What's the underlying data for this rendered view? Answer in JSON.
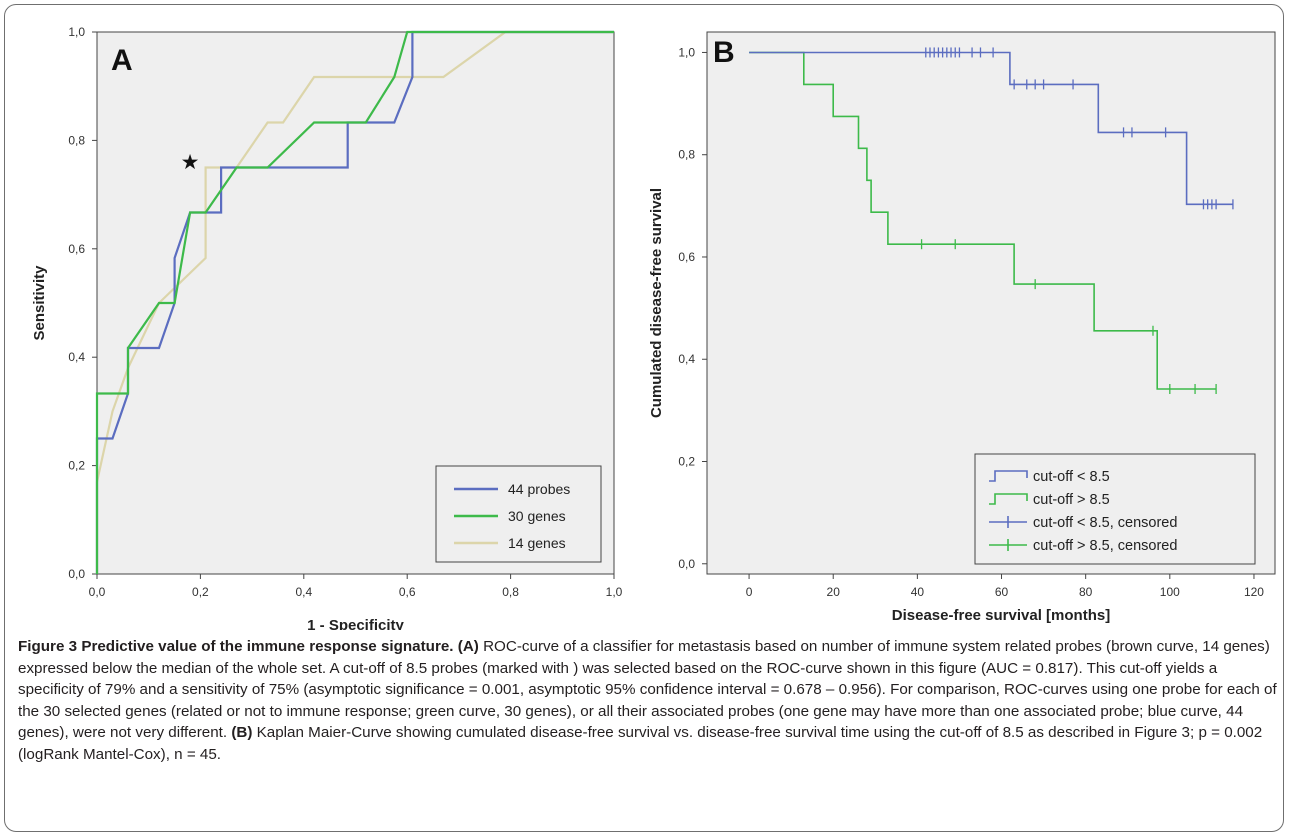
{
  "figure": {
    "caption": {
      "figure_label": "Figure 3",
      "title": "Predictive value of the immune response signature.",
      "part_a_marker": "(A)",
      "part_a_text": "ROC-curve of a classifier for metastasis based on number of immune system related probes (brown curve, 14 genes) expressed below the median of the whole set. A cut-off of 8.5 probes (marked with ) was selected based on the ROC-curve shown in this figure (AUC = 0.817). This cut-off yields a specificity of 79% and a sensitivity of 75% (asymptotic significance = 0.001, asymptotic 95% confidence interval = 0.678 – 0.956). For comparison, ROC-curves using one probe for each of the 30 selected genes (related or not to immune response; green curve, 30 genes), or all their associated probes (one gene may have more than one associated probe; blue curve, 44 genes), were not very different.",
      "part_b_marker": "(B)",
      "part_b_text": "Kaplan Maier-Curve showing cumulated disease-free survival vs. disease-free survival time using the cut-off of 8.5 as described in Figure 3; p = 0.002 (logRank Mantel-Cox), n = 45."
    }
  },
  "colors": {
    "plot_bg": "#efefef",
    "blue": "#5b6dc0",
    "green": "#3dba4a",
    "tan": "#dcd5aa",
    "axis": "#444444"
  },
  "chart_data": [
    {
      "type": "line",
      "panel_label": "A",
      "xlabel": "1 - Specificity",
      "ylabel": "Sensitivity",
      "xlim": [
        0,
        1
      ],
      "ylim": [
        0,
        1
      ],
      "xticks": [
        "0,0",
        "0,2",
        "0,4",
        "0,6",
        "0,8",
        "1,0"
      ],
      "yticks": [
        "0,0",
        "0,2",
        "0,4",
        "0,6",
        "0,8",
        "1,0"
      ],
      "grid": false,
      "legend_position": "bottom-right",
      "marker": {
        "symbol": "★",
        "x": 0.18,
        "y": 0.76
      },
      "series": [
        {
          "name": "44 probes",
          "color": "#5b6dc0",
          "points": [
            [
              0,
              0
            ],
            [
              0,
              0.25
            ],
            [
              0.03,
              0.25
            ],
            [
              0.03,
              0.25
            ],
            [
              0.06,
              0.333
            ],
            [
              0.06,
              0.417
            ],
            [
              0.12,
              0.417
            ],
            [
              0.15,
              0.5
            ],
            [
              0.15,
              0.583
            ],
            [
              0.18,
              0.667
            ],
            [
              0.24,
              0.667
            ],
            [
              0.24,
              0.75
            ],
            [
              0.485,
              0.75
            ],
            [
              0.485,
              0.833
            ],
            [
              0.575,
              0.833
            ],
            [
              0.61,
              0.917
            ],
            [
              0.61,
              1
            ],
            [
              1,
              1
            ]
          ]
        },
        {
          "name": "30 genes",
          "color": "#3dba4a",
          "points": [
            [
              0,
              0
            ],
            [
              0,
              0.333
            ],
            [
              0.06,
              0.333
            ],
            [
              0.06,
              0.417
            ],
            [
              0.12,
              0.5
            ],
            [
              0.15,
              0.5
            ],
            [
              0.18,
              0.667
            ],
            [
              0.21,
              0.667
            ],
            [
              0.27,
              0.75
            ],
            [
              0.33,
              0.75
            ],
            [
              0.42,
              0.833
            ],
            [
              0.52,
              0.833
            ],
            [
              0.575,
              0.917
            ],
            [
              0.6,
              1
            ],
            [
              1,
              1
            ]
          ]
        },
        {
          "name": "14 genes",
          "color": "#dcd5aa",
          "points": [
            [
              0,
              0
            ],
            [
              0,
              0.17
            ],
            [
              0.03,
              0.3
            ],
            [
              0.06,
              0.38
            ],
            [
              0.12,
              0.5
            ],
            [
              0.21,
              0.583
            ],
            [
              0.21,
              0.75
            ],
            [
              0.27,
              0.75
            ],
            [
              0.33,
              0.833
            ],
            [
              0.36,
              0.833
            ],
            [
              0.42,
              0.917
            ],
            [
              0.55,
              0.917
            ],
            [
              0.58,
              0.917
            ],
            [
              0.67,
              0.917
            ],
            [
              0.79,
              1
            ],
            [
              1,
              1
            ]
          ]
        }
      ]
    },
    {
      "type": "line",
      "panel_label": "B",
      "xlabel": "Disease-free survival [months]",
      "ylabel": "Cumulated disease-free survival",
      "xlim": [
        -10,
        125
      ],
      "ylim": [
        -0.02,
        1.04
      ],
      "xticks": [
        0,
        20,
        40,
        60,
        80,
        100,
        120
      ],
      "yticks": [
        "0,0",
        "0,2",
        "0,4",
        "0,6",
        "0,8",
        "1,0"
      ],
      "ytick_values": [
        0,
        0.2,
        0.4,
        0.6,
        0.8,
        1.0
      ],
      "grid": false,
      "legend_position": "bottom-right",
      "series": [
        {
          "name": "cut-off < 8.5",
          "color": "#5b6dc0",
          "steps": [
            [
              0,
              1
            ],
            [
              62,
              0.9375
            ],
            [
              83,
              0.8437
            ],
            [
              104,
              0.703
            ],
            [
              115,
              0.703
            ]
          ],
          "censored": [
            42,
            43,
            44,
            45,
            46,
            47,
            48,
            49,
            50,
            53,
            55,
            58,
            63,
            66,
            68,
            70,
            77,
            89,
            91,
            99,
            108,
            109,
            110,
            111,
            115
          ]
        },
        {
          "name": "cut-off > 8.5",
          "color": "#3dba4a",
          "steps": [
            [
              0,
              1
            ],
            [
              13,
              0.9375
            ],
            [
              20,
              0.875
            ],
            [
              26,
              0.8125
            ],
            [
              28,
              0.75
            ],
            [
              29,
              0.6875
            ],
            [
              33,
              0.625
            ],
            [
              63,
              0.5469
            ],
            [
              82,
              0.4557
            ],
            [
              97,
              0.3418
            ],
            [
              111,
              0.3418
            ]
          ],
          "censored": [
            41,
            49,
            68,
            96,
            100,
            106,
            111
          ]
        }
      ],
      "legend": [
        {
          "label": "cut-off < 8.5",
          "kind": "step",
          "color": "#5b6dc0"
        },
        {
          "label": "cut-off > 8.5",
          "kind": "step",
          "color": "#3dba4a"
        },
        {
          "label": "cut-off < 8.5, censored",
          "kind": "censor",
          "color": "#5b6dc0"
        },
        {
          "label": "cut-off > 8.5, censored",
          "kind": "censor",
          "color": "#3dba4a"
        }
      ]
    }
  ]
}
